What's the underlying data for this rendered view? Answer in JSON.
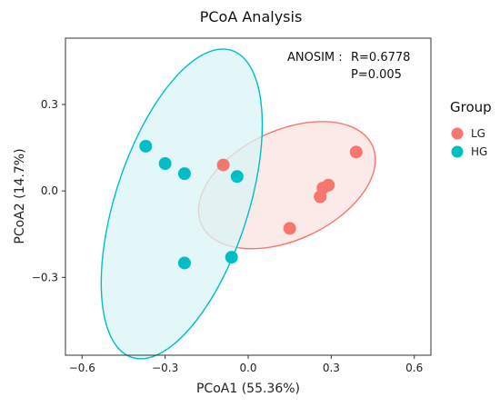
{
  "chart_data": {
    "type": "scatter",
    "title": "PCoA Analysis",
    "xlabel": "PCoA1 (55.36%)",
    "ylabel": "PCoA2 (14.7%)",
    "xlim": [
      -0.66,
      0.66
    ],
    "ylim": [
      -0.57,
      0.53
    ],
    "x_ticks": [
      -0.6,
      -0.3,
      0.0,
      0.3,
      0.6
    ],
    "x_tick_labels": [
      "−0.6",
      "−0.3",
      "0.0",
      "0.3",
      "0.6"
    ],
    "y_ticks": [
      0.3,
      0.0,
      -0.3
    ],
    "y_tick_labels": [
      "0.3",
      "0.0",
      "−0.3"
    ],
    "grid": false,
    "legend_position": "right",
    "legend_title": "Group",
    "annotation": {
      "label": "ANOSIM :",
      "r_value": "R=0.6778",
      "p_value": "P=0.005"
    },
    "series": [
      {
        "name": "LG",
        "color": "#F8766D",
        "fill": "#FBE3E0",
        "points": [
          {
            "x": -0.09,
            "y": 0.09
          },
          {
            "x": 0.39,
            "y": 0.135
          },
          {
            "x": 0.29,
            "y": 0.02
          },
          {
            "x": 0.27,
            "y": 0.01
          },
          {
            "x": 0.26,
            "y": -0.02
          },
          {
            "x": 0.15,
            "y": -0.13
          }
        ],
        "ellipse": {
          "cx": 0.14,
          "cy": 0.02,
          "rx": 0.34,
          "ry": 0.19,
          "angle_deg": 25
        }
      },
      {
        "name": "HG",
        "color": "#00BFC4",
        "fill": "#D9F4F5",
        "points": [
          {
            "x": -0.37,
            "y": 0.155
          },
          {
            "x": -0.3,
            "y": 0.095
          },
          {
            "x": -0.23,
            "y": 0.06
          },
          {
            "x": -0.04,
            "y": 0.05
          },
          {
            "x": -0.06,
            "y": -0.23
          },
          {
            "x": -0.23,
            "y": -0.25
          }
        ],
        "ellipse": {
          "cx": -0.24,
          "cy": -0.045,
          "rx": 0.24,
          "ry": 0.56,
          "angle_deg": -18
        }
      }
    ]
  }
}
